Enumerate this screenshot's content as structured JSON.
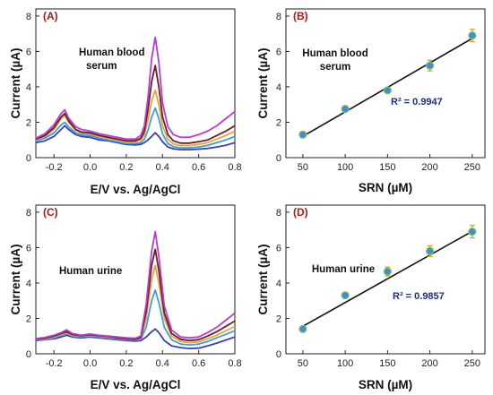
{
  "chart_data": [
    {
      "id": "A",
      "type": "line",
      "panel_label": "(A)",
      "annotation": [
        "Human blood",
        "serum"
      ],
      "xlabel": "E/V vs. Ag/AgCl",
      "ylabel": "Current (µA)",
      "xlim": [
        -0.3,
        0.8
      ],
      "ylim": [
        0,
        8.4
      ],
      "xticks": [
        -0.2,
        0.0,
        0.2,
        0.4,
        0.6,
        0.8
      ],
      "xtick_labels": [
        "-0.2",
        "0.0",
        "0.2",
        "0.4",
        "0.6",
        "0.8"
      ],
      "yticks": [
        0,
        2,
        4,
        6,
        8
      ],
      "ytick_labels": [
        "0",
        "2",
        "4",
        "6",
        "8"
      ],
      "series": [
        {
          "color": "#3b3fb8",
          "x": [
            -0.3,
            -0.25,
            -0.2,
            -0.16,
            -0.14,
            -0.12,
            -0.08,
            -0.05,
            0.0,
            0.05,
            0.1,
            0.15,
            0.2,
            0.25,
            0.28,
            0.3,
            0.32,
            0.34,
            0.36,
            0.38,
            0.4,
            0.43,
            0.46,
            0.5,
            0.55,
            0.6,
            0.65,
            0.7,
            0.75,
            0.8
          ],
          "y": [
            0.85,
            0.95,
            1.2,
            1.6,
            1.8,
            1.6,
            1.3,
            1.2,
            1.15,
            1.0,
            0.95,
            0.85,
            0.75,
            0.72,
            0.75,
            0.85,
            1.0,
            1.2,
            1.4,
            1.2,
            0.9,
            0.6,
            0.5,
            0.45,
            0.45,
            0.48,
            0.52,
            0.6,
            0.7,
            0.85
          ]
        },
        {
          "color": "#3aa0d8",
          "x": [
            -0.3,
            -0.25,
            -0.2,
            -0.16,
            -0.14,
            -0.12,
            -0.08,
            -0.05,
            0.0,
            0.05,
            0.1,
            0.15,
            0.2,
            0.25,
            0.28,
            0.3,
            0.32,
            0.34,
            0.36,
            0.38,
            0.4,
            0.43,
            0.46,
            0.5,
            0.55,
            0.6,
            0.65,
            0.7,
            0.75,
            0.8
          ],
          "y": [
            0.95,
            1.1,
            1.4,
            1.85,
            2.0,
            1.75,
            1.4,
            1.3,
            1.25,
            1.1,
            1.0,
            0.9,
            0.8,
            0.8,
            0.85,
            1.05,
            1.55,
            2.3,
            2.8,
            2.2,
            1.35,
            0.8,
            0.62,
            0.55,
            0.55,
            0.6,
            0.7,
            0.85,
            1.0,
            1.2
          ]
        },
        {
          "color": "#e8a23a",
          "x": [
            -0.3,
            -0.25,
            -0.2,
            -0.16,
            -0.14,
            -0.12,
            -0.08,
            -0.05,
            0.0,
            0.05,
            0.1,
            0.15,
            0.2,
            0.25,
            0.28,
            0.3,
            0.32,
            0.34,
            0.36,
            0.38,
            0.4,
            0.43,
            0.46,
            0.5,
            0.55,
            0.6,
            0.65,
            0.7,
            0.75,
            0.8
          ],
          "y": [
            1.0,
            1.2,
            1.6,
            2.2,
            2.4,
            2.0,
            1.55,
            1.4,
            1.35,
            1.2,
            1.1,
            1.0,
            0.9,
            0.9,
            1.0,
            1.3,
            2.1,
            3.2,
            3.8,
            3.0,
            1.8,
            1.05,
            0.78,
            0.68,
            0.68,
            0.75,
            0.85,
            1.05,
            1.25,
            1.5
          ]
        },
        {
          "color": "#6b1f1f",
          "x": [
            -0.3,
            -0.25,
            -0.2,
            -0.16,
            -0.14,
            -0.12,
            -0.08,
            -0.05,
            0.0,
            0.05,
            0.1,
            0.15,
            0.2,
            0.25,
            0.28,
            0.3,
            0.32,
            0.34,
            0.36,
            0.38,
            0.4,
            0.43,
            0.46,
            0.5,
            0.55,
            0.6,
            0.65,
            0.7,
            0.75,
            0.8
          ],
          "y": [
            1.05,
            1.25,
            1.7,
            2.3,
            2.5,
            2.1,
            1.6,
            1.45,
            1.4,
            1.25,
            1.15,
            1.05,
            0.95,
            0.95,
            1.1,
            1.5,
            2.7,
            4.3,
            5.2,
            4.0,
            2.3,
            1.3,
            0.95,
            0.82,
            0.82,
            0.9,
            1.0,
            1.25,
            1.5,
            1.8
          ]
        },
        {
          "color": "#b83ad8",
          "x": [
            -0.3,
            -0.25,
            -0.2,
            -0.16,
            -0.14,
            -0.12,
            -0.08,
            -0.05,
            0.0,
            0.05,
            0.1,
            0.15,
            0.2,
            0.25,
            0.28,
            0.3,
            0.32,
            0.34,
            0.36,
            0.38,
            0.4,
            0.43,
            0.46,
            0.5,
            0.55,
            0.6,
            0.65,
            0.7,
            0.75,
            0.8
          ],
          "y": [
            1.1,
            1.35,
            1.85,
            2.5,
            2.7,
            2.25,
            1.75,
            1.6,
            1.5,
            1.35,
            1.25,
            1.15,
            1.05,
            1.05,
            1.25,
            1.8,
            3.4,
            5.6,
            6.8,
            5.4,
            3.1,
            1.75,
            1.3,
            1.15,
            1.15,
            1.3,
            1.5,
            1.8,
            2.2,
            2.6
          ]
        }
      ]
    },
    {
      "id": "B",
      "type": "scatter",
      "panel_label": "(B)",
      "annotation": [
        "Human blood",
        "serum"
      ],
      "r2_label": "R² = 0.9947",
      "xlabel": "SRN (µM)",
      "ylabel": "Current (µA)",
      "xlim": [
        30,
        265
      ],
      "ylim": [
        0,
        8.4
      ],
      "xticks": [
        50,
        100,
        150,
        200,
        250
      ],
      "xtick_labels": [
        "50",
        "100",
        "150",
        "200",
        "250"
      ],
      "yticks": [
        0,
        2,
        4,
        6,
        8
      ],
      "ytick_labels": [
        "0",
        "2",
        "4",
        "6",
        "8"
      ],
      "points": {
        "x": [
          50,
          100,
          150,
          200,
          250
        ],
        "y": [
          1.3,
          2.75,
          3.8,
          5.2,
          6.9
        ],
        "err": [
          0.1,
          0.15,
          0.12,
          0.3,
          0.35
        ]
      },
      "fit": {
        "x": [
          47,
          253
        ],
        "y": [
          1.12,
          6.82
        ]
      }
    },
    {
      "id": "C",
      "type": "line",
      "panel_label": "(C)",
      "annotation": [
        "Human urine"
      ],
      "xlabel": "E/V vs. Ag/AgCl",
      "ylabel": "Current (µA)",
      "xlim": [
        -0.3,
        0.8
      ],
      "ylim": [
        0,
        8.4
      ],
      "xticks": [
        -0.2,
        0.0,
        0.2,
        0.4,
        0.6,
        0.8
      ],
      "xtick_labels": [
        "-0.2",
        "0.0",
        "0.2",
        "0.4",
        "0.6",
        "0.8"
      ],
      "yticks": [
        0,
        2,
        4,
        6,
        8
      ],
      "ytick_labels": [
        "0",
        "2",
        "4",
        "6",
        "8"
      ],
      "series": [
        {
          "color": "#3b3fb8",
          "x": [
            -0.3,
            -0.25,
            -0.2,
            -0.16,
            -0.13,
            -0.1,
            -0.05,
            0.0,
            0.05,
            0.1,
            0.15,
            0.2,
            0.25,
            0.28,
            0.31,
            0.34,
            0.36,
            0.38,
            0.41,
            0.45,
            0.5,
            0.55,
            0.6,
            0.65,
            0.7,
            0.75,
            0.8
          ],
          "y": [
            0.75,
            0.8,
            0.85,
            0.95,
            1.05,
            0.95,
            0.9,
            0.95,
            0.9,
            0.85,
            0.8,
            0.75,
            0.72,
            0.75,
            0.95,
            1.25,
            1.4,
            1.2,
            0.75,
            0.45,
            0.35,
            0.3,
            0.32,
            0.45,
            0.6,
            0.78,
            0.95
          ]
        },
        {
          "color": "#3aa0d8",
          "x": [
            -0.3,
            -0.25,
            -0.2,
            -0.16,
            -0.13,
            -0.1,
            -0.05,
            0.0,
            0.05,
            0.1,
            0.15,
            0.2,
            0.25,
            0.28,
            0.31,
            0.34,
            0.36,
            0.38,
            0.41,
            0.45,
            0.5,
            0.55,
            0.6,
            0.65,
            0.7,
            0.75,
            0.8
          ],
          "y": [
            0.78,
            0.82,
            0.9,
            1.05,
            1.15,
            1.0,
            0.95,
            1.0,
            0.95,
            0.9,
            0.85,
            0.8,
            0.78,
            0.82,
            1.5,
            3.0,
            3.6,
            2.9,
            1.5,
            0.8,
            0.55,
            0.5,
            0.55,
            0.7,
            0.9,
            1.1,
            1.3
          ]
        },
        {
          "color": "#e8a23a",
          "x": [
            -0.3,
            -0.25,
            -0.2,
            -0.16,
            -0.13,
            -0.1,
            -0.05,
            0.0,
            0.05,
            0.1,
            0.15,
            0.2,
            0.25,
            0.28,
            0.31,
            0.34,
            0.36,
            0.38,
            0.41,
            0.45,
            0.5,
            0.55,
            0.6,
            0.65,
            0.7,
            0.75,
            0.8
          ],
          "y": [
            0.8,
            0.85,
            0.95,
            1.1,
            1.2,
            1.05,
            1.0,
            1.05,
            1.0,
            0.95,
            0.88,
            0.82,
            0.8,
            0.88,
            2.0,
            4.2,
            5.0,
            4.0,
            2.0,
            1.0,
            0.7,
            0.62,
            0.68,
            0.85,
            1.05,
            1.3,
            1.55
          ]
        },
        {
          "color": "#6b1f1f",
          "x": [
            -0.3,
            -0.25,
            -0.2,
            -0.16,
            -0.13,
            -0.1,
            -0.05,
            0.0,
            0.05,
            0.1,
            0.15,
            0.2,
            0.25,
            0.28,
            0.31,
            0.34,
            0.36,
            0.38,
            0.41,
            0.45,
            0.5,
            0.55,
            0.6,
            0.65,
            0.7,
            0.75,
            0.8
          ],
          "y": [
            0.82,
            0.88,
            1.0,
            1.15,
            1.25,
            1.1,
            1.02,
            1.08,
            1.02,
            0.98,
            0.9,
            0.85,
            0.82,
            0.92,
            2.4,
            5.0,
            5.9,
            4.7,
            2.3,
            1.15,
            0.82,
            0.75,
            0.8,
            1.0,
            1.25,
            1.55,
            1.85
          ]
        },
        {
          "color": "#b83ad8",
          "x": [
            -0.3,
            -0.25,
            -0.2,
            -0.16,
            -0.13,
            -0.1,
            -0.05,
            0.0,
            0.05,
            0.1,
            0.15,
            0.2,
            0.25,
            0.28,
            0.31,
            0.34,
            0.36,
            0.38,
            0.41,
            0.45,
            0.5,
            0.55,
            0.6,
            0.65,
            0.7,
            0.75,
            0.8
          ],
          "y": [
            0.85,
            0.92,
            1.05,
            1.2,
            1.35,
            1.15,
            1.05,
            1.12,
            1.05,
            1.0,
            0.95,
            0.9,
            0.88,
            1.0,
            2.8,
            5.8,
            6.9,
            5.5,
            2.7,
            1.35,
            0.95,
            0.9,
            0.95,
            1.2,
            1.5,
            1.9,
            2.3
          ]
        }
      ]
    },
    {
      "id": "D",
      "type": "scatter",
      "panel_label": "(D)",
      "annotation": [
        "Human urine"
      ],
      "r2_label": "R² = 0.9857",
      "xlabel": "SRN (µM)",
      "ylabel": "Current (µA)",
      "xlim": [
        30,
        265
      ],
      "ylim": [
        0,
        8.4
      ],
      "xticks": [
        50,
        100,
        150,
        200,
        250
      ],
      "xtick_labels": [
        "50",
        "100",
        "150",
        "200",
        "250"
      ],
      "yticks": [
        0,
        2,
        4,
        6,
        8
      ],
      "ytick_labels": [
        "0",
        "2",
        "4",
        "6",
        "8"
      ],
      "points": {
        "x": [
          50,
          100,
          150,
          200,
          250
        ],
        "y": [
          1.4,
          3.3,
          4.65,
          5.8,
          6.9
        ],
        "err": [
          0.1,
          0.15,
          0.25,
          0.3,
          0.35
        ]
      },
      "fit": {
        "x": [
          48,
          253
        ],
        "y": [
          1.5,
          7.0
        ]
      }
    }
  ],
  "colors": {
    "fit_line": "#111111",
    "marker_fill": "#3a8de0",
    "marker_accent": "#8cc63f",
    "error_bar": "#d4a017",
    "panel_label": "#b01818",
    "r2_text": "#1d2f86"
  }
}
